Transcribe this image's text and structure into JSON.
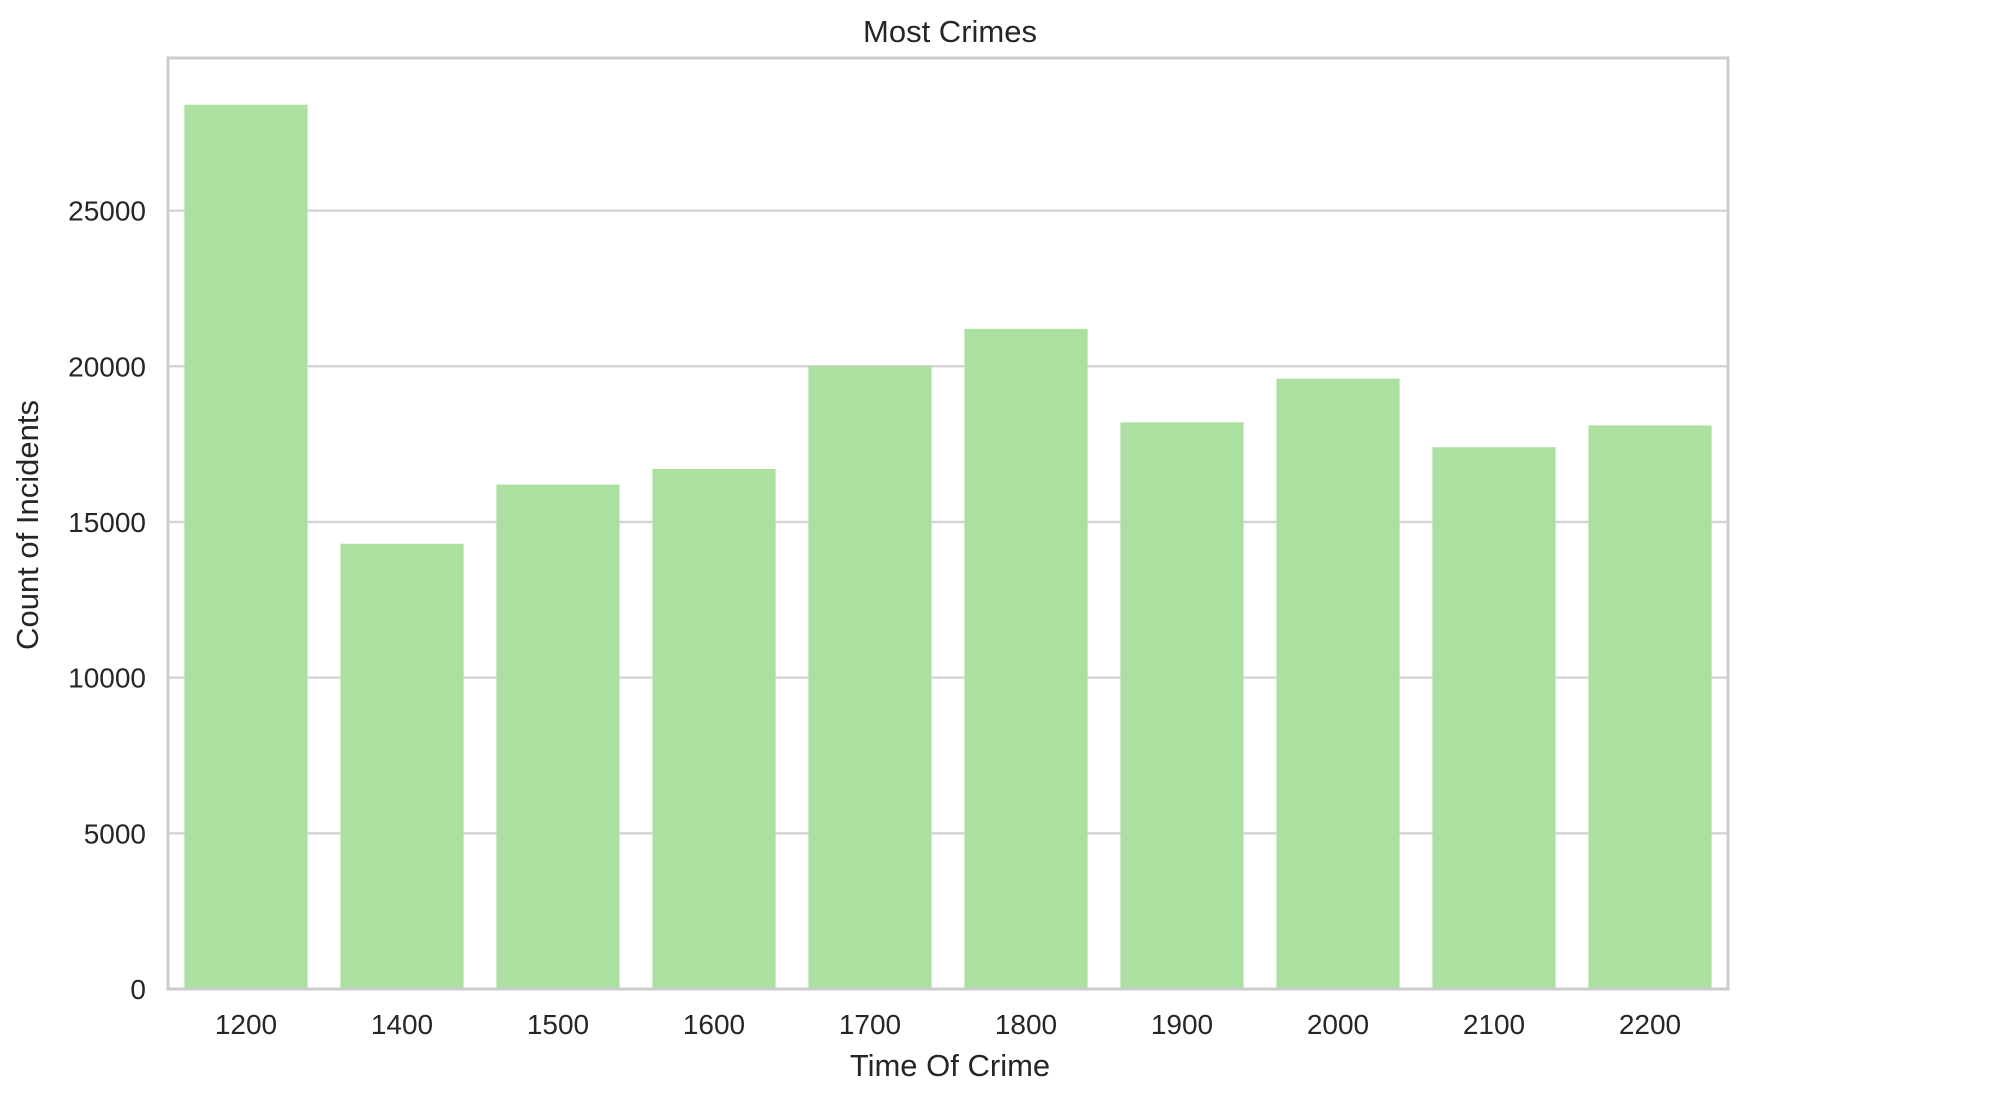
{
  "chart_data": {
    "type": "bar",
    "title": "Most Crimes",
    "xlabel": "Time Of Crime",
    "ylabel": "Count of Incidents",
    "categories": [
      "1200",
      "1400",
      "1500",
      "1600",
      "1700",
      "1800",
      "1900",
      "2000",
      "2100",
      "2200"
    ],
    "values": [
      28400,
      14300,
      16200,
      16700,
      20000,
      21200,
      18200,
      19600,
      17400,
      18100
    ],
    "ylim": [
      0,
      29900
    ],
    "yticks": [
      "0",
      "5000",
      "10000",
      "15000",
      "20000",
      "25000"
    ],
    "grid": "horizontal",
    "legend": "none",
    "colors": {
      "bar": "#abe0a0",
      "grid": "#d5d5d8",
      "frame": "#cccccf",
      "text": "#262626"
    }
  }
}
